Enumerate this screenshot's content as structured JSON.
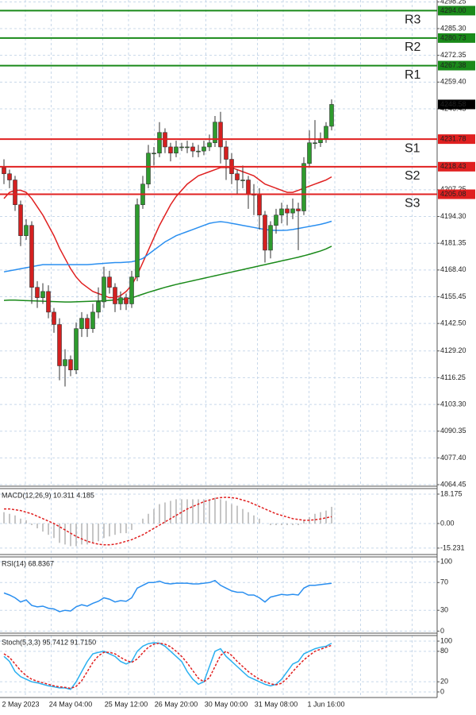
{
  "chart_data": [
    {
      "type": "candlestick",
      "categories": [
        null,
        null,
        null,
        "2 May 2023",
        null,
        null,
        null,
        null,
        null,
        null,
        null,
        null,
        "24 May 04:00",
        null,
        null,
        null,
        null,
        null,
        null,
        null,
        null,
        null,
        "25 May 12:00",
        null,
        null,
        null,
        null,
        null,
        null,
        null,
        null,
        "26 May 20:00",
        null,
        null,
        null,
        null,
        null,
        null,
        null,
        null,
        "30 May 00:00",
        null,
        null,
        null,
        null,
        null,
        null,
        null,
        null,
        "31 May 08:00",
        null,
        null,
        null,
        null,
        null,
        null,
        null,
        null,
        "1 Jun 16:00",
        null
      ],
      "open": [
        4218,
        4215,
        4212,
        4200,
        4185,
        4190,
        4160,
        4155,
        4158,
        4148,
        4142,
        4122,
        4125,
        4120,
        4140,
        4145,
        4140,
        4148,
        4153,
        4165,
        4160,
        4152,
        4155,
        4152,
        4165,
        4200,
        4210,
        4225,
        4225,
        4235,
        4228,
        4225,
        4228,
        4228,
        4228,
        4226,
        4226,
        4228,
        4230,
        4240,
        4228,
        4222,
        4215,
        4212,
        4212,
        4205,
        4205,
        4195,
        4178,
        4190,
        4195,
        4198,
        4196,
        4198,
        4197,
        4220,
        4230,
        4230,
        4232,
        4238
      ],
      "high": [
        4222,
        4217,
        4214,
        4202,
        4193,
        4192,
        4163,
        4162,
        4161,
        4150,
        4145,
        4130,
        4127,
        4143,
        4148,
        4147,
        4152,
        4160,
        4170,
        4168,
        4162,
        4158,
        4157,
        4168,
        4203,
        4214,
        4229,
        4228,
        4240,
        4237,
        4230,
        4231,
        4230,
        4231,
        4230,
        4229,
        4231,
        4234,
        4243,
        4245,
        4231,
        4225,
        4217,
        4219,
        4214,
        4210,
        4208,
        4197,
        4192,
        4198,
        4201,
        4200,
        4203,
        4201,
        4223,
        4236,
        4241,
        4235,
        4240,
        4251
      ],
      "low": [
        4210,
        4208,
        4197,
        4180,
        4183,
        4152,
        4150,
        4152,
        4145,
        4138,
        4115,
        4112,
        4117,
        4118,
        4136,
        4136,
        4138,
        4145,
        4150,
        4157,
        4148,
        4149,
        4149,
        4150,
        4163,
        4198,
        4208,
        4219,
        4223,
        4225,
        4221,
        4223,
        4226,
        4225,
        4223,
        4223,
        4224,
        4226,
        4228,
        4220,
        4212,
        4210,
        4205,
        4208,
        4198,
        4195,
        4188,
        4172,
        4174,
        4186,
        4191,
        4190,
        4193,
        4178,
        4195,
        4218,
        4227,
        4228,
        4230,
        4236
      ],
      "close": [
        4215,
        4212,
        4200,
        4185,
        4190,
        4160,
        4155,
        4158,
        4148,
        4142,
        4122,
        4125,
        4120,
        4140,
        4145,
        4140,
        4148,
        4153,
        4165,
        4160,
        4152,
        4155,
        4152,
        4165,
        4200,
        4210,
        4225,
        4225,
        4235,
        4228,
        4225,
        4228,
        4228,
        4228,
        4226,
        4226,
        4228,
        4230,
        4240,
        4228,
        4222,
        4215,
        4212,
        4212,
        4205,
        4205,
        4195,
        4178,
        4190,
        4195,
        4198,
        4196,
        4198,
        4197,
        4220,
        4230,
        4230,
        4232,
        4238,
        4248.58
      ],
      "up_color": "#2e9b2e",
      "down_color": "#d42020",
      "overlays": [
        {
          "color": "#e02020",
          "values": [
            4203,
            4206,
            4207,
            4207,
            4206,
            4203,
            4199,
            4195,
            4190,
            4185,
            4179,
            4174,
            4169,
            4165,
            4162,
            4160,
            4158,
            4157,
            4156,
            4155,
            4155,
            4156,
            4158,
            4161,
            4166,
            4172,
            4178,
            4184,
            4190,
            4195,
            4200,
            4204,
            4207,
            4210,
            4212,
            4214,
            4215,
            4216,
            4217,
            4218,
            4218,
            4218,
            4217,
            4216,
            4215,
            4214,
            4212,
            4210,
            4209,
            4208,
            4207,
            4206,
            4206,
            4207,
            4208,
            4209,
            4210,
            4211,
            4212,
            4213.5
          ]
        },
        {
          "color": "#2a8ff0",
          "values": [
            4167.5,
            4168,
            4168.5,
            4169,
            4169.5,
            4170,
            4170.5,
            4171,
            4171,
            4171,
            4171,
            4171,
            4171,
            4171,
            4171,
            4171,
            4171.2,
            4171.4,
            4171.6,
            4171.8,
            4172,
            4172,
            4172.2,
            4172.4,
            4173,
            4174,
            4176,
            4178,
            4180,
            4182,
            4183.5,
            4185,
            4186,
            4187,
            4188,
            4189,
            4190,
            4191,
            4191.5,
            4191.8,
            4191.5,
            4191,
            4190.5,
            4190,
            4189.5,
            4189,
            4188.5,
            4188,
            4187.7,
            4187.6,
            4187.6,
            4187.7,
            4188,
            4188.5,
            4189,
            4189.5,
            4190,
            4190.5,
            4191.2,
            4192
          ]
        },
        {
          "color": "#1a8a1a",
          "values": [
            4153.7,
            4153.8,
            4153.8,
            4153.7,
            4153.6,
            4153.5,
            4153.4,
            4153.3,
            4153.2,
            4153.1,
            4153,
            4152.9,
            4152.9,
            4153,
            4153.1,
            4153.2,
            4153.3,
            4153.4,
            4153.5,
            4153.7,
            4153.9,
            4154.1,
            4154.4,
            4154.9,
            4155.8,
            4156.7,
            4157.6,
            4158.4,
            4159.2,
            4160,
            4160.7,
            4161.4,
            4162,
            4162.6,
            4163.2,
            4163.8,
            4164.4,
            4165,
            4165.6,
            4166.2,
            4166.8,
            4167.4,
            4168,
            4168.6,
            4169.2,
            4169.8,
            4170.4,
            4171,
            4171.6,
            4172.2,
            4172.8,
            4173.4,
            4174,
            4174.6,
            4175.3,
            4176,
            4176.8,
            4177.6,
            4178.6,
            4179.9
          ]
        }
      ],
      "levels": [
        {
          "name": "R3",
          "value": 4294,
          "value_label": "4294.00",
          "color": "#1a8a1a"
        },
        {
          "name": "R2",
          "value": 4280.73,
          "color": "#1a8a1a"
        },
        {
          "name": "R1",
          "value": 4267.38,
          "color": "#1a8a1a"
        },
        {
          "name": "S1",
          "value": 4231.78,
          "color": "#e02020"
        },
        {
          "name": "S2",
          "value": 4218.43,
          "color": "#e02020"
        },
        {
          "name": "S3",
          "value": 4205.08,
          "color": "#e02020"
        }
      ],
      "last_price": 4248.58,
      "ylim": [
        4063.7,
        4299.15
      ],
      "yticks": [
        {
          "value": 4298.25,
          "label": "4298.25"
        },
        {
          "value": 4285.3,
          "label": "4285.30"
        },
        4272.35,
        {
          "value": 4259.4,
          "label": "4259.40"
        },
        4246.45,
        4207.25,
        {
          "value": 4194.3,
          "label": "4194.30"
        },
        4181.35,
        {
          "value": 4168.4,
          "label": "4168.40"
        },
        4155.45,
        {
          "value": 4142.5,
          "label": "4142.50"
        },
        {
          "value": 4129.2,
          "label": "4129.20"
        },
        4116.25,
        {
          "value": 4103.3,
          "label": "4103.30"
        },
        4090.35,
        {
          "value": 4077.4,
          "label": "4077.40"
        },
        4064.45
      ],
      "grid": true
    },
    {
      "type": "macd",
      "title": "MACD(12,26,9) 10.311 4.185",
      "histogram": {
        "color": "#b8b8b8",
        "values": [
          7,
          6,
          5,
          3,
          2,
          -1,
          -3,
          -5,
          -7,
          -9,
          -12,
          -13,
          -14,
          -14,
          -13,
          -13,
          -12,
          -11,
          -9,
          -8,
          -7,
          -6,
          -6,
          -4,
          0,
          3,
          6,
          9,
          12,
          13,
          14,
          15,
          15,
          15,
          15,
          15,
          15,
          15,
          16,
          15,
          14,
          12,
          11,
          9,
          7,
          5,
          3,
          0,
          -1,
          -1,
          -1,
          -1,
          -1,
          -1,
          2,
          4,
          6,
          7,
          8,
          10.311
        ]
      },
      "signal": {
        "color": "#e02020",
        "dashed": true,
        "values": [
          9,
          9,
          8.5,
          8,
          7,
          6,
          4.5,
          3,
          1.5,
          0,
          -2,
          -4,
          -6,
          -8,
          -9.5,
          -11,
          -12,
          -12.8,
          -13.2,
          -13.2,
          -12.8,
          -12,
          -11,
          -10,
          -8.5,
          -7,
          -5,
          -3,
          -1,
          1,
          3,
          5,
          7,
          9,
          10.5,
          12,
          13.5,
          14.5,
          15.5,
          16,
          16.2,
          16,
          15.5,
          14.5,
          13.5,
          12,
          10.5,
          9,
          7.5,
          6,
          5,
          4,
          3,
          2.5,
          2,
          2,
          2.3,
          2.8,
          3.5,
          4.185
        ]
      },
      "ylim": [
        -19.2,
        21.6
      ],
      "yticks": [
        18.175,
        {
          "value": 0,
          "label": "0.00"
        },
        -15.231
      ],
      "grid": true
    },
    {
      "type": "line",
      "title": "RSI(14) 68.8367",
      "series": [
        {
          "color": "#2a8ff0",
          "dashed": false,
          "values": [
            55,
            52,
            48,
            42,
            45,
            37,
            35,
            36,
            33,
            32,
            28,
            30,
            29,
            35,
            38,
            36,
            40,
            43,
            48,
            46,
            42,
            44,
            43,
            48,
            62,
            66,
            70,
            70,
            72,
            69,
            68,
            69,
            69,
            69,
            68,
            68,
            69,
            70,
            73,
            66,
            62,
            58,
            56,
            56,
            52,
            52,
            48,
            42,
            49,
            51,
            53,
            52,
            53,
            52,
            62,
            66,
            66,
            67,
            68,
            68.8367
          ]
        }
      ],
      "ylim": [
        -3,
        107
      ],
      "yticks": [
        100,
        70,
        30,
        0
      ],
      "grid": true
    },
    {
      "type": "line",
      "title": "Stoch(5,3,3) 95.7412 91.7150",
      "series": [
        {
          "color": "#2ab0f0",
          "dashed": false,
          "values": [
            70,
            60,
            40,
            30,
            25,
            20,
            18,
            15,
            12,
            10,
            8,
            8,
            5,
            20,
            40,
            60,
            75,
            78,
            80,
            75,
            70,
            60,
            55,
            60,
            80,
            90,
            95,
            97,
            96,
            90,
            80,
            70,
            60,
            40,
            25,
            15,
            20,
            50,
            80,
            85,
            70,
            60,
            50,
            40,
            30,
            25,
            20,
            15,
            12,
            15,
            25,
            40,
            55,
            60,
            75,
            80,
            85,
            88,
            90,
            95.7412
          ]
        },
        {
          "color": "#e02020",
          "dashed": true,
          "values": [
            75,
            68,
            55,
            42,
            32,
            25,
            21,
            18,
            15,
            12,
            10,
            9,
            7,
            11,
            22,
            40,
            58,
            71,
            78,
            78,
            75,
            68,
            62,
            58,
            65,
            77,
            88,
            94,
            96,
            94,
            89,
            80,
            70,
            57,
            42,
            27,
            20,
            28,
            50,
            72,
            80,
            72,
            60,
            50,
            40,
            32,
            25,
            20,
            16,
            14,
            17,
            27,
            40,
            52,
            63,
            72,
            80,
            84,
            88,
            91.715
          ]
        }
      ],
      "ylim": [
        -11,
        111
      ],
      "yticks": [
        100,
        80,
        20,
        0
      ],
      "grid": true
    }
  ]
}
